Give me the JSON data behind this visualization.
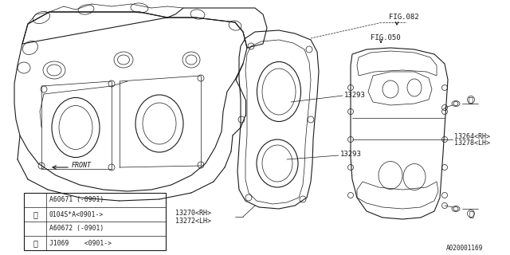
{
  "bg_color": "#ffffff",
  "line_color": "#1a1a1a",
  "fig_id": "A020001169",
  "labels": {
    "fig082": "FIG.082",
    "fig050": "FIG.050",
    "part13293_1": "13293",
    "part13293_2": "13293",
    "part13270": "13270<RH>",
    "part13272": "13272<LH>",
    "part13264": "13264<RH>",
    "part13278": "13278<LH>",
    "front": "FRONT"
  },
  "legend": {
    "row1a": "A60671 (-0901)",
    "row1b": "0104S*A<0901->",
    "row2a": "A60672 (-0901)",
    "row2b": "J1069    <0901->"
  }
}
